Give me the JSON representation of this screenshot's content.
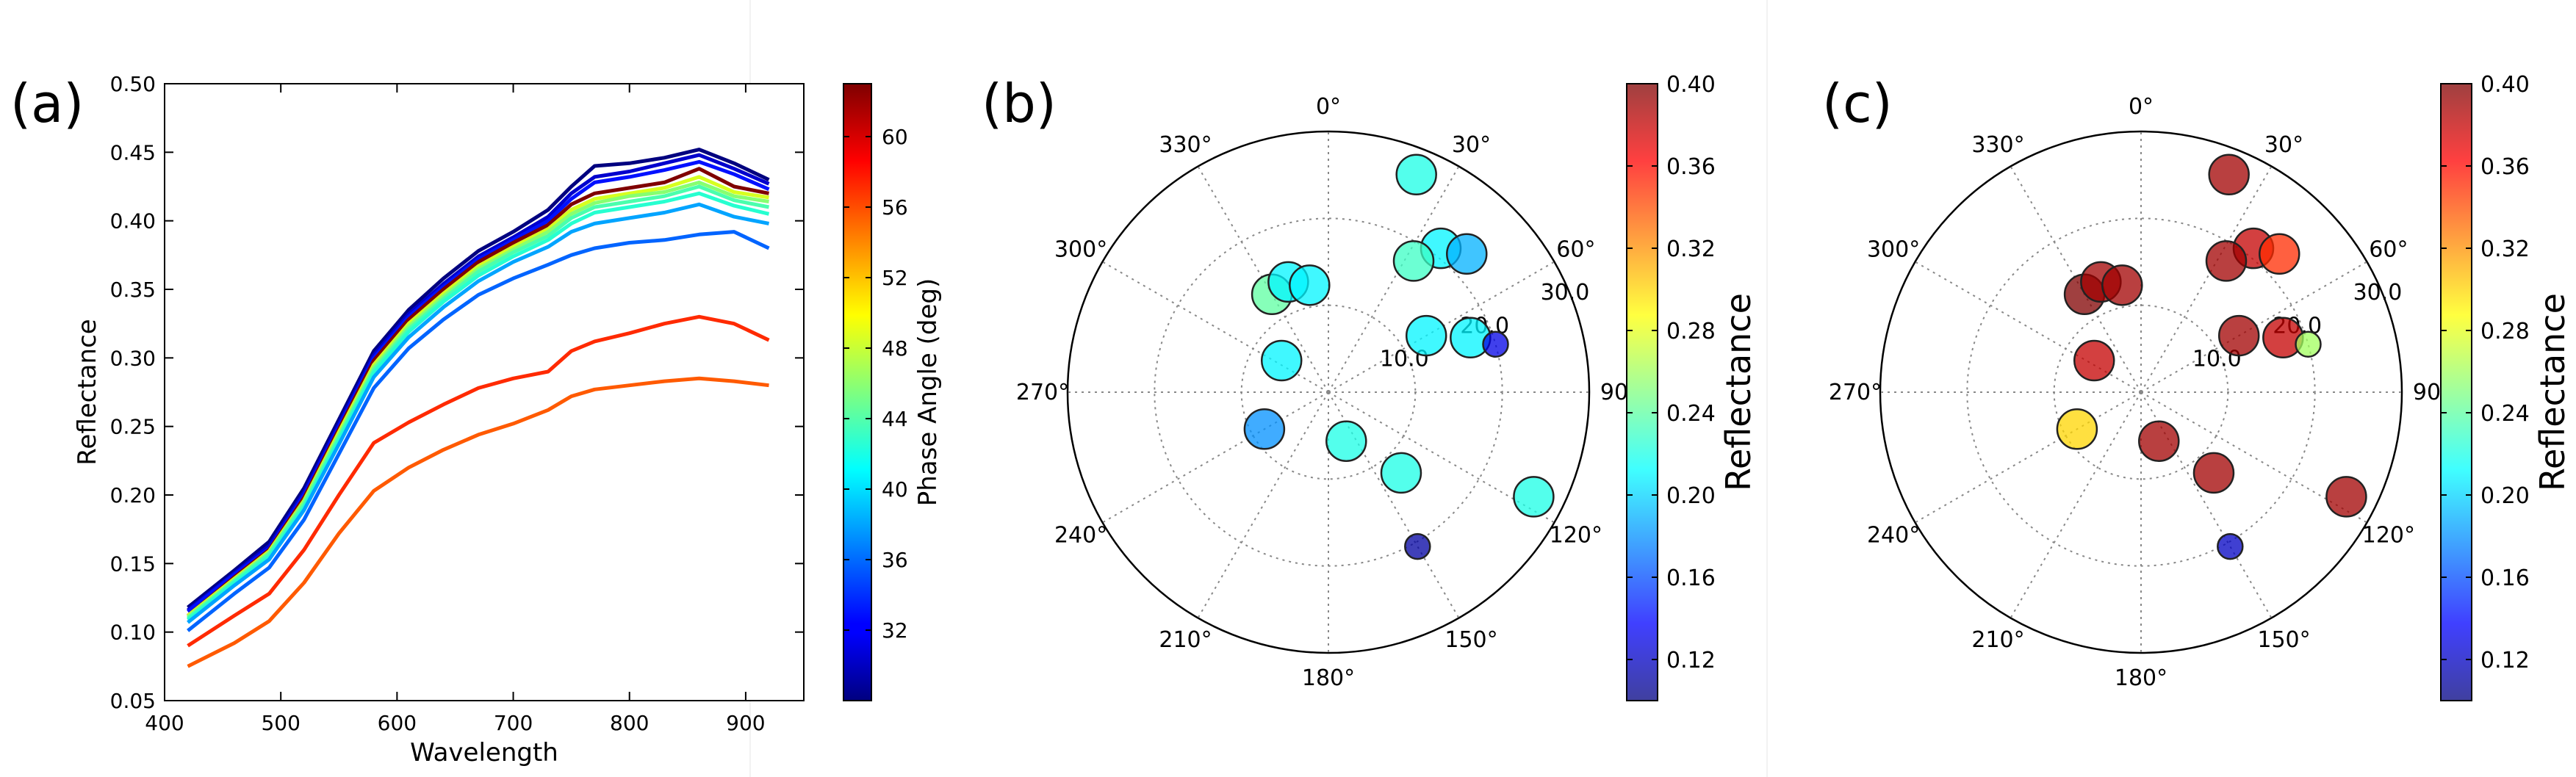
{
  "panels": {
    "a": {
      "label": "(a)"
    },
    "b": {
      "label": "(b)"
    },
    "c": {
      "label": "(c)"
    }
  },
  "chart_data": [
    {
      "panel": "a",
      "type": "line",
      "title": "",
      "xlabel": "Wavelength",
      "ylabel": "Reflectance",
      "xlim": [
        400,
        950
      ],
      "ylim": [
        0.05,
        0.5
      ],
      "xticks": [
        "400",
        "500",
        "600",
        "700",
        "800",
        "900"
      ],
      "yticks": [
        "0.05",
        "0.10",
        "0.15",
        "0.20",
        "0.25",
        "0.30",
        "0.35",
        "0.40",
        "0.45",
        "0.50"
      ],
      "x": [
        420,
        460,
        490,
        520,
        550,
        580,
        610,
        640,
        670,
        700,
        730,
        750,
        770,
        800,
        830,
        860,
        890,
        920
      ],
      "colorbar": {
        "label": "Phase Angle (deg)",
        "range": [
          28,
          63
        ],
        "ticks": [
          "32",
          "36",
          "40",
          "44",
          "48",
          "52",
          "56",
          "60"
        ]
      },
      "series": [
        {
          "name": "29",
          "color": "#00007f",
          "values": [
            0.118,
            0.145,
            0.166,
            0.205,
            0.255,
            0.305,
            0.335,
            0.358,
            0.378,
            0.392,
            0.408,
            0.425,
            0.44,
            0.442,
            0.446,
            0.452,
            0.442,
            0.43
          ]
        },
        {
          "name": "30",
          "color": "#0000cd",
          "values": [
            0.116,
            0.143,
            0.163,
            0.202,
            0.252,
            0.302,
            0.332,
            0.354,
            0.374,
            0.388,
            0.403,
            0.42,
            0.432,
            0.436,
            0.442,
            0.448,
            0.438,
            0.427
          ]
        },
        {
          "name": "31",
          "color": "#0010ff",
          "values": [
            0.115,
            0.142,
            0.161,
            0.2,
            0.25,
            0.3,
            0.33,
            0.352,
            0.372,
            0.386,
            0.4,
            0.416,
            0.428,
            0.432,
            0.437,
            0.443,
            0.434,
            0.423
          ]
        },
        {
          "name": "62",
          "color": "#7f0000",
          "values": [
            0.112,
            0.14,
            0.16,
            0.198,
            0.248,
            0.298,
            0.328,
            0.35,
            0.37,
            0.384,
            0.397,
            0.412,
            0.42,
            0.424,
            0.428,
            0.438,
            0.425,
            0.42
          ]
        },
        {
          "name": "49",
          "color": "#d7ff1f",
          "values": [
            0.112,
            0.139,
            0.159,
            0.196,
            0.246,
            0.295,
            0.325,
            0.347,
            0.367,
            0.381,
            0.394,
            0.408,
            0.416,
            0.42,
            0.424,
            0.432,
            0.421,
            0.417
          ]
        },
        {
          "name": "46",
          "color": "#87ff70",
          "values": [
            0.111,
            0.138,
            0.158,
            0.195,
            0.244,
            0.293,
            0.323,
            0.345,
            0.365,
            0.379,
            0.392,
            0.405,
            0.413,
            0.418,
            0.421,
            0.428,
            0.418,
            0.414
          ]
        },
        {
          "name": "43",
          "color": "#4affad",
          "values": [
            0.11,
            0.137,
            0.157,
            0.193,
            0.242,
            0.291,
            0.321,
            0.343,
            0.363,
            0.377,
            0.389,
            0.402,
            0.41,
            0.414,
            0.418,
            0.425,
            0.415,
            0.41
          ]
        },
        {
          "name": "42",
          "color": "#26ffd0",
          "values": [
            0.109,
            0.136,
            0.155,
            0.191,
            0.24,
            0.289,
            0.319,
            0.341,
            0.36,
            0.374,
            0.386,
            0.398,
            0.406,
            0.41,
            0.414,
            0.42,
            0.411,
            0.405
          ]
        },
        {
          "name": "38",
          "color": "#00a4ff",
          "values": [
            0.107,
            0.134,
            0.153,
            0.189,
            0.237,
            0.286,
            0.315,
            0.337,
            0.356,
            0.37,
            0.381,
            0.392,
            0.398,
            0.402,
            0.406,
            0.412,
            0.403,
            0.398
          ]
        },
        {
          "name": "36",
          "color": "#0064ff",
          "values": [
            0.101,
            0.128,
            0.147,
            0.182,
            0.23,
            0.278,
            0.307,
            0.328,
            0.346,
            0.358,
            0.368,
            0.375,
            0.38,
            0.384,
            0.386,
            0.39,
            0.392,
            0.38
          ]
        },
        {
          "name": "59",
          "color": "#ff2a00",
          "values": [
            0.09,
            0.112,
            0.128,
            0.16,
            0.2,
            0.238,
            0.253,
            0.266,
            0.278,
            0.285,
            0.29,
            0.305,
            0.312,
            0.318,
            0.325,
            0.33,
            0.325,
            0.313
          ]
        },
        {
          "name": "57",
          "color": "#ff5a00",
          "values": [
            0.075,
            0.092,
            0.108,
            0.136,
            0.172,
            0.203,
            0.22,
            0.233,
            0.244,
            0.252,
            0.262,
            0.272,
            0.277,
            0.28,
            0.283,
            0.285,
            0.283,
            0.28
          ]
        }
      ]
    },
    {
      "panel": "b",
      "type": "scatter",
      "subtype": "polar",
      "title": "",
      "angle_labels": [
        "0°",
        "30°",
        "60°",
        "90",
        "120°",
        "150°",
        "180°",
        "210°",
        "240°",
        "270°",
        "300°",
        "330°"
      ],
      "radial_labels": [
        "10.0",
        "20.0",
        "30.0"
      ],
      "rmax": 30,
      "colorbar": {
        "label": "Reflectance",
        "range": [
          0.1,
          0.4
        ],
        "ticks": [
          "0.12",
          "0.16",
          "0.20",
          "0.24",
          "0.28",
          "0.32",
          "0.36",
          "0.40"
        ]
      },
      "points": [
        {
          "theta": 22,
          "r": 27,
          "value": 0.22,
          "size": "large"
        },
        {
          "theta": 38,
          "r": 21,
          "value": 0.21,
          "size": "large"
        },
        {
          "theta": 45,
          "r": 22.5,
          "value": 0.19,
          "size": "large"
        },
        {
          "theta": 33,
          "r": 18,
          "value": 0.23,
          "size": "large"
        },
        {
          "theta": -30,
          "r": 13,
          "value": 0.24,
          "size": "large"
        },
        {
          "theta": -20,
          "r": 13.5,
          "value": 0.21,
          "size": "large"
        },
        {
          "theta": -10,
          "r": 12.5,
          "value": 0.21,
          "size": "large"
        },
        {
          "theta": 60,
          "r": 13,
          "value": 0.21,
          "size": "large"
        },
        {
          "theta": 69,
          "r": 17.5,
          "value": 0.21,
          "size": "large"
        },
        {
          "theta": 74,
          "r": 20,
          "value": 0.13,
          "size": "small"
        },
        {
          "theta": -56,
          "r": 6.5,
          "value": 0.21,
          "size": "large"
        },
        {
          "theta": -120,
          "r": 8.5,
          "value": 0.18,
          "size": "large"
        },
        {
          "theta": 160,
          "r": 6,
          "value": 0.22,
          "size": "large"
        },
        {
          "theta": 138,
          "r": 12.5,
          "value": 0.22,
          "size": "large"
        },
        {
          "theta": 117,
          "r": 26.5,
          "value": 0.22,
          "size": "large"
        },
        {
          "theta": 150,
          "r": 20.5,
          "value": 0.11,
          "size": "small"
        }
      ]
    },
    {
      "panel": "c",
      "type": "scatter",
      "subtype": "polar",
      "title": "",
      "angle_labels": [
        "0°",
        "30°",
        "60°",
        "90",
        "120°",
        "150°",
        "180°",
        "210°",
        "240°",
        "270°",
        "300°",
        "330°"
      ],
      "radial_labels": [
        "10.0",
        "20.0",
        "30.0"
      ],
      "rmax": 30,
      "colorbar": {
        "label": "Reflectance",
        "range": [
          0.1,
          0.4
        ],
        "ticks": [
          "0.12",
          "0.16",
          "0.20",
          "0.24",
          "0.28",
          "0.32",
          "0.36",
          "0.40"
        ]
      },
      "points": [
        {
          "theta": 22,
          "r": 27,
          "value": 0.39,
          "size": "large"
        },
        {
          "theta": 38,
          "r": 21,
          "value": 0.38,
          "size": "large"
        },
        {
          "theta": 45,
          "r": 22.5,
          "value": 0.35,
          "size": "large"
        },
        {
          "theta": 33,
          "r": 18,
          "value": 0.39,
          "size": "large"
        },
        {
          "theta": -30,
          "r": 13,
          "value": 0.4,
          "size": "large"
        },
        {
          "theta": -20,
          "r": 13.5,
          "value": 0.39,
          "size": "large"
        },
        {
          "theta": -10,
          "r": 12.5,
          "value": 0.39,
          "size": "large"
        },
        {
          "theta": 60,
          "r": 13,
          "value": 0.39,
          "size": "large"
        },
        {
          "theta": 69,
          "r": 17.5,
          "value": 0.38,
          "size": "large"
        },
        {
          "theta": 74,
          "r": 20,
          "value": 0.26,
          "size": "small"
        },
        {
          "theta": -56,
          "r": 6.5,
          "value": 0.38,
          "size": "large"
        },
        {
          "theta": -120,
          "r": 8.5,
          "value": 0.3,
          "size": "large"
        },
        {
          "theta": 160,
          "r": 6,
          "value": 0.39,
          "size": "large"
        },
        {
          "theta": 138,
          "r": 12.5,
          "value": 0.39,
          "size": "large"
        },
        {
          "theta": 117,
          "r": 26.5,
          "value": 0.39,
          "size": "large"
        },
        {
          "theta": 150,
          "r": 20.5,
          "value": 0.12,
          "size": "small"
        }
      ]
    }
  ]
}
